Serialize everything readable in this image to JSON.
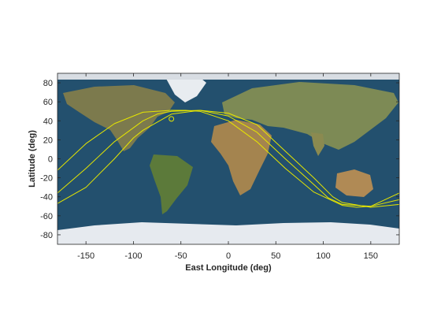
{
  "chart_data": {
    "type": "line",
    "title": "",
    "xlabel": "East Longitude (deg)",
    "ylabel": "Latitude (deg)",
    "xlim": [
      -180,
      180
    ],
    "ylim": [
      -90,
      90
    ],
    "xticks": [
      -150,
      -100,
      -50,
      0,
      50,
      100,
      150
    ],
    "yticks": [
      -80,
      -60,
      -40,
      -20,
      0,
      20,
      40,
      60,
      80
    ],
    "grid": false,
    "background": "world satellite map (Earth imagery)",
    "series": [
      {
        "color": "#e6e600",
        "x": [
          -180,
          -150,
          -120,
          -90,
          -60,
          -45,
          -30,
          0,
          30,
          60,
          90,
          120,
          135,
          150,
          180
        ],
        "y": [
          -12,
          16,
          37,
          49,
          51,
          51,
          50,
          40,
          18,
          -10,
          -35,
          -49,
          -51,
          -50,
          -36
        ]
      },
      {
        "color": "#e6e600",
        "x": [
          -180,
          -150,
          -120,
          -90,
          -75,
          -60,
          -30,
          0,
          30,
          60,
          90,
          105,
          120,
          150,
          180
        ],
        "y": [
          -36,
          -10,
          18,
          40,
          47,
          50,
          51,
          45,
          28,
          0,
          -27,
          -41,
          -48,
          -50,
          -43
        ]
      },
      {
        "color": "#e6e600",
        "x": [
          -180,
          -150,
          -120,
          -100,
          -90,
          -60,
          -30,
          0,
          30,
          60,
          90,
          110,
          120,
          150,
          180
        ],
        "y": [
          -47,
          -30,
          0,
          22,
          30,
          47,
          51,
          48,
          36,
          8,
          -20,
          -40,
          -46,
          -51,
          -48
        ]
      }
    ],
    "markers": [
      {
        "x": -60,
        "y": 42,
        "symbol": "circle",
        "color": "#e6e600"
      }
    ]
  }
}
